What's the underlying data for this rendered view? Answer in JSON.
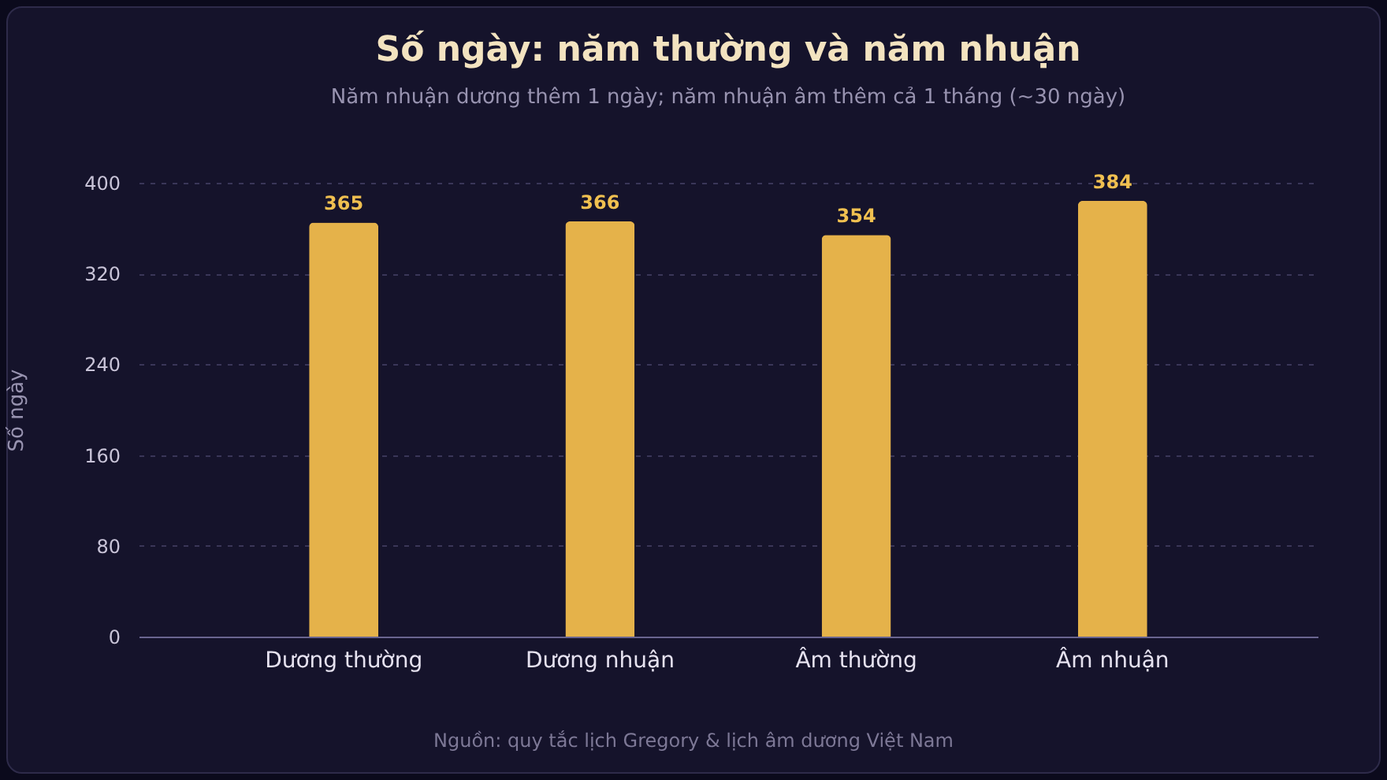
{
  "chart_data": {
    "type": "bar",
    "title": "Số ngày: năm thường và năm nhuận",
    "subtitle": "Năm nhuận dương thêm 1 ngày; năm nhuận âm thêm cả 1 tháng (~30 ngày)",
    "ylabel": "Số ngày",
    "categories": [
      "Dương thường",
      "Dương nhuận",
      "Âm thường",
      "Âm nhuận"
    ],
    "values": [
      365,
      366,
      354,
      384
    ],
    "color": "#e5b24a",
    "ylim": [
      0,
      400
    ],
    "yticks": [
      0,
      80,
      160,
      240,
      320,
      400
    ],
    "grid": "y",
    "data_labels": true,
    "annotations": [
      "Nguồn: quy tắc lịch Gregory & lịch âm dương Việt Nam"
    ]
  }
}
